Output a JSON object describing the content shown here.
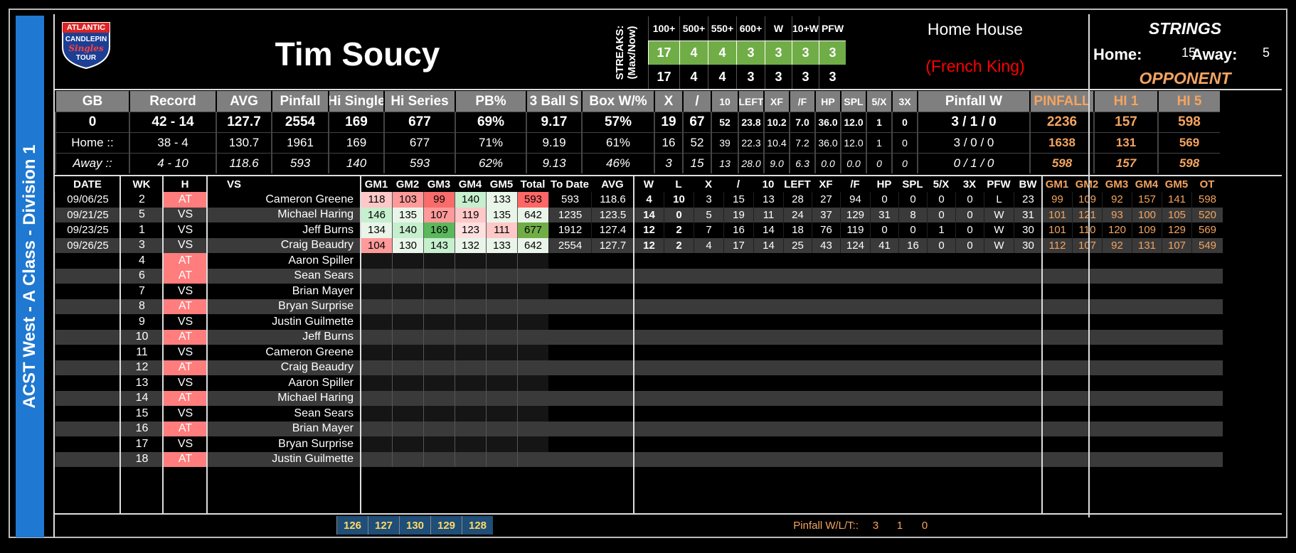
{
  "division": "ACST West - A Class - Division 1",
  "logo": {
    "line1": "ATLANTIC",
    "line2": "CANDLEPIN",
    "line3": "Singles",
    "line4": "TOUR"
  },
  "player": "Tim Soucy",
  "streaks": {
    "label": "STREAKS:",
    "sublabel": "(Max/Now)",
    "headers": [
      "100+",
      "500+",
      "550+",
      "600+",
      "W",
      "10+W",
      "PFW"
    ],
    "max": [
      "17",
      "4",
      "4",
      "3",
      "3",
      "3",
      "3"
    ],
    "now": [
      "17",
      "4",
      "4",
      "3",
      "3",
      "3",
      "3"
    ]
  },
  "home_house": {
    "label": "Home House",
    "name": "(French King)"
  },
  "strings": {
    "title": "STRINGS",
    "home_label": "Home:",
    "home_value": "15",
    "away_label": "Away:",
    "away_value": "5",
    "opponent_label": "OPPONENT"
  },
  "summary": {
    "headers": [
      "GB",
      "Record",
      "AVG",
      "Pinfall",
      "Hi Single",
      "Hi Series",
      "PB%",
      "3 Ball S",
      "Box W/%",
      "X",
      "/",
      "10",
      "LEFT",
      "XF",
      "/F",
      "HP",
      "SPL",
      "5/X",
      "3X",
      "Pinfall W",
      "PINFALL",
      "HI 1",
      "HI 5"
    ],
    "rows": [
      {
        "label": "",
        "cells": [
          "0",
          "42 - 14",
          "127.7",
          "2554",
          "169",
          "677",
          "69%",
          "9.17",
          "57%",
          "19",
          "67",
          "52",
          "23.8",
          "10.2",
          "7.0",
          "36.0",
          "12.0",
          "1",
          "0",
          "3 / 1 / 0",
          "2236",
          "157",
          "598"
        ]
      },
      {
        "label": "Home ::",
        "cells": [
          "",
          "38 - 4",
          "130.7",
          "1961",
          "169",
          "677",
          "71%",
          "9.19",
          "61%",
          "16",
          "52",
          "39",
          "22.3",
          "10.4",
          "7.2",
          "36.0",
          "12.0",
          "1",
          "0",
          "3 / 0 / 0",
          "1638",
          "131",
          "569"
        ]
      },
      {
        "label": "Away ::",
        "cells": [
          "",
          "4 - 10",
          "118.6",
          "593",
          "140",
          "593",
          "62%",
          "9.13",
          "46%",
          "3",
          "15",
          "13",
          "28.0",
          "9.0",
          "6.3",
          "0.0",
          "0.0",
          "0",
          "0",
          "0 / 1 / 0",
          "598",
          "157",
          "598"
        ]
      }
    ]
  },
  "games": {
    "headers": [
      "DATE",
      "WK",
      "H",
      "VS",
      "GM1",
      "GM2",
      "GM3",
      "GM4",
      "GM5",
      "Total",
      "To Date",
      "AVG",
      "W",
      "L",
      "X",
      "/",
      "10",
      "LEFT",
      "XF",
      "/F",
      "HP",
      "SPL",
      "5/X",
      "3X",
      "PFW",
      "BW",
      "GM1",
      "GM2",
      "GM3",
      "GM4",
      "GM5",
      "OT"
    ],
    "rows": [
      {
        "date": "09/06/25",
        "wk": "2",
        "h": "AT",
        "vs": "Cameron Greene",
        "g": [
          "118",
          "103",
          "99",
          "140",
          "133"
        ],
        "total": "593",
        "todate": "593",
        "avg": "118.6",
        "w": "4",
        "l": "10",
        "x": "3",
        "sp": "15",
        "ten": "13",
        "left": "28",
        "xf": "27",
        "f": "94",
        "hp": "0",
        "spl": "0",
        "fx": "0",
        "tx": "0",
        "pfw": "L",
        "bw": "23",
        "o": [
          "99",
          "109",
          "92",
          "157",
          "141",
          "598"
        ]
      },
      {
        "date": "09/21/25",
        "wk": "5",
        "h": "VS",
        "vs": "Michael Haring",
        "g": [
          "146",
          "135",
          "107",
          "119",
          "135"
        ],
        "total": "642",
        "todate": "1235",
        "avg": "123.5",
        "w": "14",
        "l": "0",
        "x": "5",
        "sp": "19",
        "ten": "11",
        "left": "24",
        "xf": "37",
        "f": "129",
        "hp": "31",
        "spl": "8",
        "fx": "0",
        "tx": "0",
        "pfw": "W",
        "bw": "31",
        "o": [
          "101",
          "121",
          "93",
          "100",
          "105",
          "520"
        ]
      },
      {
        "date": "09/23/25",
        "wk": "1",
        "h": "VS",
        "vs": "Jeff Burns",
        "g": [
          "134",
          "140",
          "169",
          "123",
          "111"
        ],
        "total": "677",
        "todate": "1912",
        "avg": "127.4",
        "w": "12",
        "l": "2",
        "x": "7",
        "sp": "16",
        "ten": "14",
        "left": "18",
        "xf": "76",
        "f": "119",
        "hp": "0",
        "spl": "0",
        "fx": "1",
        "tx": "0",
        "pfw": "W",
        "bw": "30",
        "o": [
          "101",
          "110",
          "120",
          "109",
          "129",
          "569"
        ]
      },
      {
        "date": "09/26/25",
        "wk": "3",
        "h": "VS",
        "vs": "Craig Beaudry",
        "g": [
          "104",
          "130",
          "143",
          "132",
          "133"
        ],
        "total": "642",
        "todate": "2554",
        "avg": "127.7",
        "w": "12",
        "l": "2",
        "x": "4",
        "sp": "17",
        "ten": "14",
        "left": "25",
        "xf": "43",
        "f": "124",
        "hp": "41",
        "spl": "16",
        "fx": "0",
        "tx": "0",
        "pfw": "W",
        "bw": "30",
        "o": [
          "112",
          "107",
          "92",
          "131",
          "107",
          "549"
        ]
      },
      {
        "date": "",
        "wk": "4",
        "h": "AT",
        "vs": "Aaron Spiller"
      },
      {
        "date": "",
        "wk": "6",
        "h": "AT",
        "vs": "Sean Sears"
      },
      {
        "date": "",
        "wk": "7",
        "h": "VS",
        "vs": "Brian Mayer"
      },
      {
        "date": "",
        "wk": "8",
        "h": "AT",
        "vs": "Bryan Surprise"
      },
      {
        "date": "",
        "wk": "9",
        "h": "VS",
        "vs": "Justin Guilmette"
      },
      {
        "date": "",
        "wk": "10",
        "h": "AT",
        "vs": "Jeff Burns"
      },
      {
        "date": "",
        "wk": "11",
        "h": "VS",
        "vs": "Cameron Greene"
      },
      {
        "date": "",
        "wk": "12",
        "h": "AT",
        "vs": "Craig Beaudry"
      },
      {
        "date": "",
        "wk": "13",
        "h": "VS",
        "vs": "Aaron Spiller"
      },
      {
        "date": "",
        "wk": "14",
        "h": "AT",
        "vs": "Michael Haring"
      },
      {
        "date": "",
        "wk": "15",
        "h": "VS",
        "vs": "Sean Sears"
      },
      {
        "date": "",
        "wk": "16",
        "h": "AT",
        "vs": "Brian Mayer"
      },
      {
        "date": "",
        "wk": "17",
        "h": "VS",
        "vs": "Bryan Surprise"
      },
      {
        "date": "",
        "wk": "18",
        "h": "AT",
        "vs": "Justin Guilmette"
      }
    ]
  },
  "footer": {
    "game_avgs": [
      "126",
      "127",
      "130",
      "129",
      "128"
    ],
    "pinfall_label": "Pinfall W/L/T::",
    "pinfall_values": [
      "3",
      "1",
      "0"
    ]
  },
  "colors": {
    "accent_orange": "#f4a460",
    "at_red": "#ff7d7d",
    "streak_green": "#70ad47",
    "game_avg_blue": "#1f4e78",
    "french_king": "#ff0000",
    "header_gray": "#7f7f7f",
    "division_blue": "#1f78d1"
  }
}
